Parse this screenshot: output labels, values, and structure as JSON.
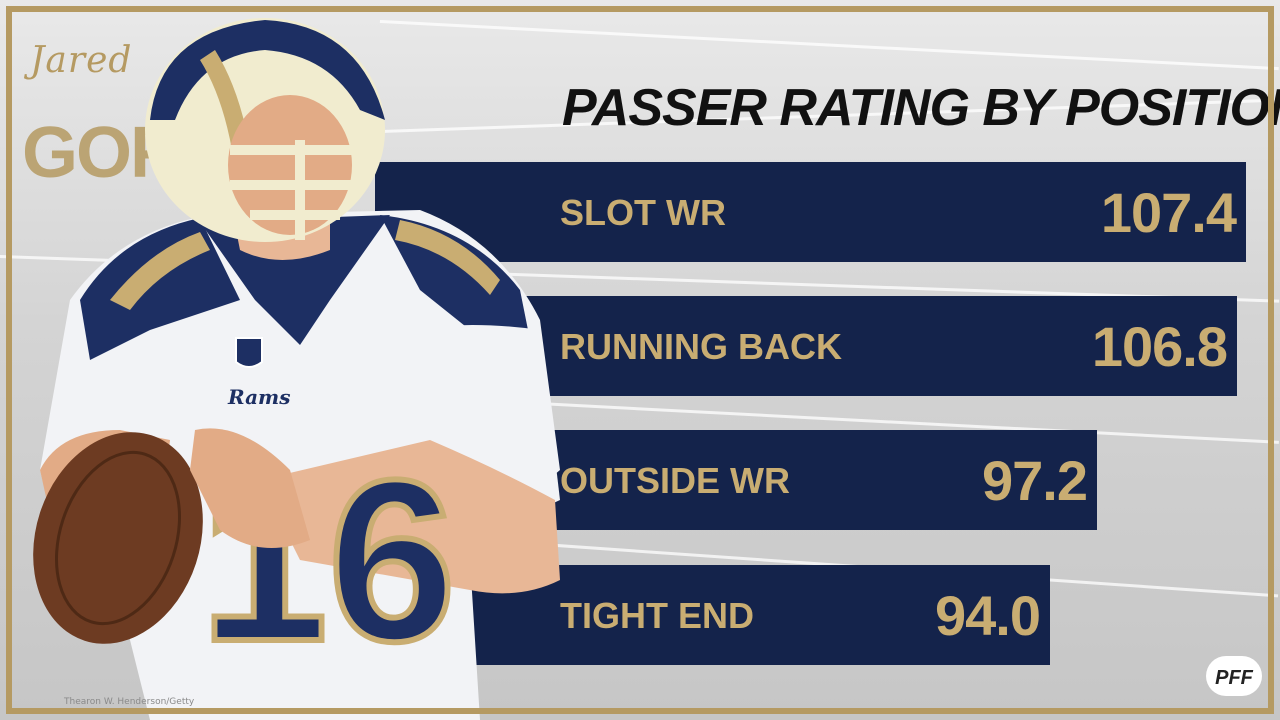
{
  "player": {
    "first_name": "Jared",
    "last_name": "GOFF",
    "jersey_number": "16",
    "team_patch": "Rams",
    "credit": "Thearon W. Henderson/Getty"
  },
  "brand": {
    "logo_text": "PFF"
  },
  "colors": {
    "navy": "#14234b",
    "gold": "#c9ad72",
    "frame": "#b59a62"
  },
  "chart_data": {
    "type": "bar",
    "orientation": "horizontal",
    "title": "PASSER RATING BY POSITION",
    "categories": [
      "SLOT WR",
      "RUNNING BACK",
      "OUTSIDE WR",
      "TIGHT END"
    ],
    "values": [
      107.4,
      106.8,
      97.2,
      94.0
    ],
    "value_labels": [
      "107.4",
      "106.8",
      "97.2",
      "94.0"
    ],
    "grid": false,
    "legend": "none"
  }
}
